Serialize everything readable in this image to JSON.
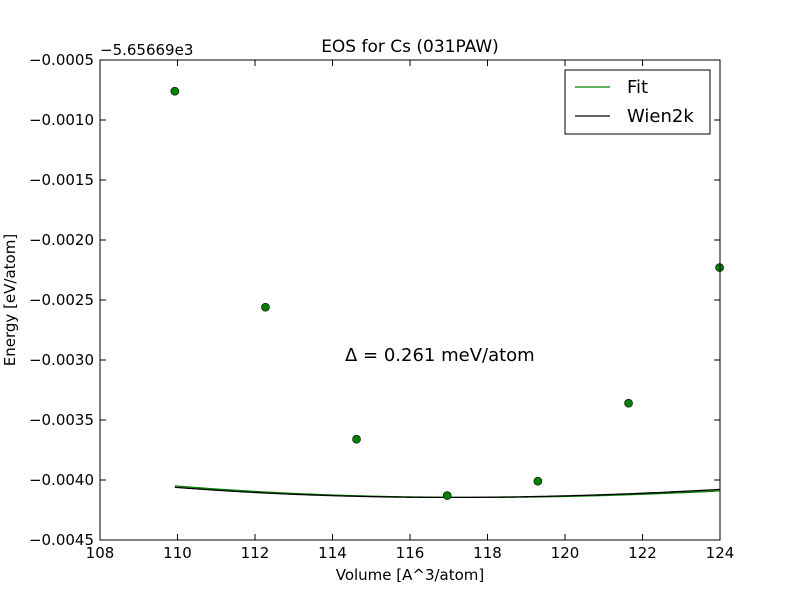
{
  "chart_data": {
    "type": "line",
    "title": "EOS for Cs (031PAW)",
    "xlabel": "Volume [A^3/atom]",
    "ylabel": "Energy [eV/atom]",
    "y_offset_label": "−5.65669e3",
    "annotation": "Δ = 0.261 meV/atom",
    "xlim": [
      108,
      124
    ],
    "ylim": [
      -0.0045,
      -0.0005
    ],
    "x_ticks": [
      108,
      110,
      112,
      114,
      116,
      118,
      120,
      122,
      124
    ],
    "x_tick_labels": [
      "108",
      "110",
      "112",
      "114",
      "116",
      "118",
      "120",
      "122",
      "124"
    ],
    "y_ticks": [
      -0.0045,
      -0.004,
      -0.0035,
      -0.003,
      -0.0025,
      -0.002,
      -0.0015,
      -0.001,
      -0.0005
    ],
    "y_tick_labels": [
      "−0.0045",
      "−0.0040",
      "−0.0035",
      "−0.0030",
      "−0.0025",
      "−0.0020",
      "−0.0015",
      "−0.0010",
      "−0.0005"
    ],
    "legend_position": "top-right",
    "grid": false,
    "series": [
      {
        "name": "Fit",
        "color": "#008000",
        "model": "birch_murnaghan",
        "params": {
          "E0": -0.004145,
          "V0": 117.61,
          "B0_over_V0": 0.0003416,
          "Bp": 4.0
        },
        "x_range": [
          109.93,
          124.0
        ]
      },
      {
        "name": "Wien2k",
        "color": "#000000",
        "model": "birch_murnaghan",
        "params": {
          "E0": -0.004145,
          "V0": 117.03,
          "B0_over_V0": 0.000353,
          "Bp": 4.0
        },
        "x_range": [
          109.93,
          124.0
        ]
      }
    ],
    "points": {
      "color": "#008000",
      "x": [
        109.93,
        112.27,
        114.62,
        116.96,
        119.3,
        121.64,
        123.99
      ],
      "y": [
        -0.00076,
        -0.00256,
        -0.00366,
        -0.00413,
        -0.00401,
        -0.00336,
        -0.00223
      ]
    }
  }
}
